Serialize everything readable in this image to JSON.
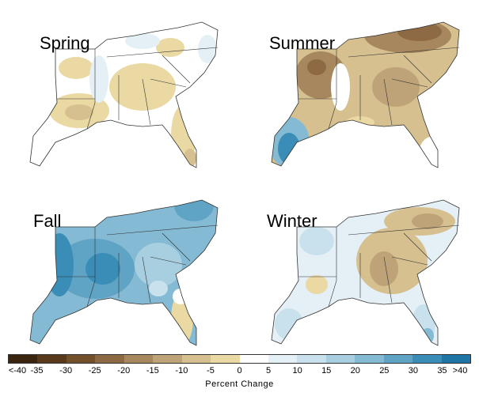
{
  "panels": [
    {
      "id": "spring",
      "label": "Spring",
      "pattern": "mixed-dry-south"
    },
    {
      "id": "summer",
      "label": "Summer",
      "pattern": "dry"
    },
    {
      "id": "fall",
      "label": "Fall",
      "pattern": "wet"
    },
    {
      "id": "winter",
      "label": "Winter",
      "pattern": "mixed-dry-north"
    }
  ],
  "legend": {
    "title": "Percent Change",
    "ticks": [
      "<-40",
      "-35",
      "-30",
      "-25",
      "-20",
      "-15",
      "-10",
      "-5",
      "0",
      "5",
      "10",
      "15",
      "20",
      "25",
      "30",
      "35",
      ">40"
    ],
    "colors": [
      "#3b2410",
      "#5a3a1c",
      "#73502c",
      "#8d6a43",
      "#a7875d",
      "#bfa378",
      "#d6c08f",
      "#ead9a2",
      "#ffffff",
      "#e5f0f6",
      "#c9e1ec",
      "#a8cfe0",
      "#84bad3",
      "#5fa4c5",
      "#3a8db6",
      "#1f76a5"
    ]
  }
}
